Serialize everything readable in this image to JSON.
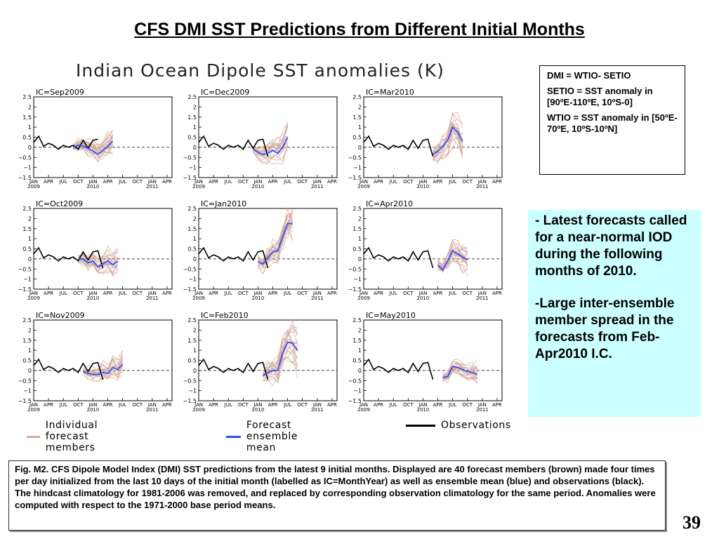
{
  "slide": {
    "title": "CFS DMI SST Predictions from Different Initial Months",
    "figure_title": "Indian Ocean Dipole SST anomalies (K)",
    "definitions": [
      "DMI = WTIO- SETIO",
      "SETIO = SST anomaly in [90ºE-110ºE, 10ºS-0]",
      "WTIO = SST anomaly in [50ºE-70ºE, 10ºS-10ºN]"
    ],
    "notes": [
      "- Latest forecasts called for a near-normal IOD during the following months of 2010.",
      "-Large inter-ensemble member spread in the forecasts from Feb-Apr2010 I.C."
    ],
    "caption": "Fig. M2. CFS Dipole Model Index (DMI) SST predictions from the latest 9 initial months. Displayed are 40 forecast members (brown) made four times per day initialized from the last 10 days of the initial month (labelled as IC=MonthYear) as well as ensemble mean (blue) and observations (black). The hindcast climatology for 1981-2006 was removed, and replaced by corresponding observation climatology for the same period. Anomalies were computed with respect to the 1971-2000 base period means.",
    "page_number": "39"
  },
  "legend": {
    "members": "Individual forecast members",
    "mean": "Forecast ensemble mean",
    "obs": "Observations"
  },
  "colors": {
    "members": "#d4a89a",
    "mean": "#2f4fff",
    "obs": "#000000",
    "note_bg": "#ccffff"
  },
  "chart_data": {
    "type": "line",
    "ylim": [
      -1.5,
      2.5
    ],
    "yticks": [
      "2.5",
      "2",
      "1.5",
      "1",
      "0.5",
      "0",
      "−0.5",
      "−1",
      "−1.5"
    ],
    "xtick_labels": [
      "JAN",
      "APR",
      "JUL",
      "OCT",
      "JAN",
      "APR",
      "JUL",
      "OCT",
      "JAN",
      "APR"
    ],
    "year_labels": [
      "2009",
      "2010",
      "2011"
    ],
    "observations": [
      0.25,
      0.55,
      0.05,
      0.2,
      0.1,
      -0.1,
      0.1,
      0.0,
      0.1,
      -0.1,
      0.35,
      -0.05,
      0.35,
      0.4,
      -0.45
    ],
    "panels": [
      {
        "label": "IC=Sep2009",
        "obs_months": 14,
        "ic": 8,
        "mean": [
          0.0,
          0.1,
          0.05,
          -0.05,
          -0.2,
          -0.35,
          -0.15,
          0.05,
          0.3
        ],
        "spread": 0.45
      },
      {
        "label": "IC=Dec2009",
        "obs_months": 15,
        "ic": 11,
        "mean": [
          -0.1,
          -0.25,
          -0.35,
          -0.3,
          -0.15,
          -0.3,
          0.0,
          0.5
        ],
        "spread": 0.6
      },
      {
        "label": "IC=Mar2010",
        "obs_months": 15,
        "ic": 14,
        "mean": [
          -0.35,
          -0.2,
          0.05,
          0.35,
          1.0,
          0.75,
          0.3
        ],
        "spread": 0.9
      },
      {
        "label": "IC=Oct2009",
        "obs_months": 15,
        "ic": 9,
        "mean": [
          0.0,
          0.0,
          -0.2,
          -0.1,
          -0.4,
          -0.25,
          -0.1,
          -0.3,
          -0.1
        ],
        "spread": 0.5
      },
      {
        "label": "IC=Jan2010",
        "obs_months": 15,
        "ic": 12,
        "mean": [
          -0.15,
          -0.25,
          0.05,
          0.35,
          0.4,
          1.1,
          1.75,
          1.75
        ],
        "spread": 0.8
      },
      {
        "label": "IC=Apr2010",
        "obs_months": 15,
        "ic": 15,
        "mean": [
          -0.3,
          -0.55,
          -0.1,
          0.4,
          0.25,
          0.1,
          -0.05
        ],
        "spread": 0.7
      },
      {
        "label": "IC=Nov2009",
        "obs_months": 15,
        "ic": 10,
        "mean": [
          -0.05,
          -0.15,
          -0.2,
          -0.2,
          -0.1,
          -0.15,
          0.15,
          0.05,
          0.3
        ],
        "spread": 0.5
      },
      {
        "label": "IC=Feb2010",
        "obs_months": 15,
        "ic": 13,
        "mean": [
          -0.25,
          -0.1,
          0.0,
          0.0,
          0.85,
          1.4,
          1.35,
          1.0
        ],
        "spread": 0.85
      },
      {
        "label": "IC=May2010",
        "obs_months": 15,
        "ic": 16,
        "mean": [
          -0.35,
          -0.3,
          0.2,
          0.15,
          0.05,
          -0.05,
          -0.1,
          -0.2
        ],
        "spread": 0.5
      }
    ]
  }
}
